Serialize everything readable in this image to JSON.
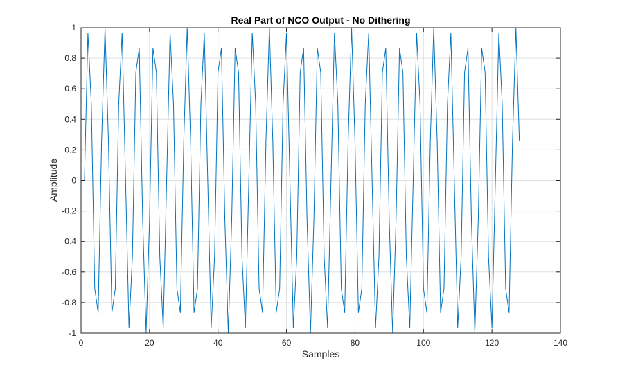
{
  "chart_data": {
    "type": "line",
    "title": "Real Part of NCO Output - No Dithering",
    "xlabel": "Samples",
    "ylabel": "Amplitude",
    "xlim": [
      0,
      140
    ],
    "ylim": [
      -1,
      1
    ],
    "xticks": [
      0,
      20,
      40,
      60,
      80,
      100,
      120,
      140
    ],
    "yticks": [
      -1,
      -0.8,
      -0.6,
      -0.4,
      -0.2,
      0,
      0.2,
      0.4,
      0.6,
      0.8,
      1
    ],
    "xtick_labels": [
      "0",
      "20",
      "40",
      "60",
      "80",
      "100",
      "120",
      "140"
    ],
    "ytick_labels": [
      "-1",
      "-0.8",
      "-0.6",
      "-0.4",
      "-0.2",
      "0",
      "0.2",
      "0.4",
      "0.6",
      "0.8",
      "1"
    ],
    "grid": true,
    "line_color": "#0072BD",
    "series": [
      {
        "x": [
          1,
          2,
          3,
          4,
          5,
          6,
          7,
          8,
          9,
          10,
          11,
          12,
          13,
          14,
          15,
          16,
          17,
          18,
          19,
          20,
          21,
          22,
          23,
          24,
          25,
          26,
          27,
          28,
          29,
          30,
          31,
          32,
          33,
          34,
          35,
          36,
          37,
          38,
          39,
          40,
          41,
          42,
          43,
          44,
          45,
          46,
          47,
          48,
          49,
          50,
          51,
          52,
          53,
          54,
          55,
          56,
          57,
          58,
          59,
          60,
          61,
          62,
          63,
          64,
          65,
          66,
          67,
          68,
          69,
          70,
          71,
          72,
          73,
          74,
          75,
          76,
          77,
          78,
          79,
          80,
          81,
          82,
          83,
          84,
          85,
          86,
          87,
          88,
          89,
          90,
          91,
          92,
          93,
          94,
          95,
          96,
          97,
          98,
          99,
          100,
          101,
          102,
          103,
          104,
          105,
          106,
          107,
          108,
          109,
          110,
          111,
          112,
          113,
          114,
          115,
          116,
          117,
          118,
          119,
          120,
          121,
          122,
          123,
          124,
          125,
          126,
          127,
          128
        ],
        "y": [
          0,
          0.9659,
          0.5,
          -0.7071,
          -0.866,
          0.2588,
          1,
          0.2588,
          -0.866,
          -0.7071,
          0.5,
          0.9659,
          0,
          -0.9659,
          -0.5,
          0.7071,
          0.866,
          -0.2588,
          -1,
          -0.2588,
          0.866,
          0.7071,
          -0.5,
          -0.9659,
          0,
          0.9659,
          0.5,
          -0.7071,
          -0.866,
          0.2588,
          1,
          0.2588,
          -0.866,
          -0.7071,
          0.5,
          0.9659,
          0,
          -0.9659,
          -0.5,
          0.7071,
          0.866,
          -0.2588,
          -1,
          -0.2588,
          0.866,
          0.7071,
          -0.5,
          -0.9659,
          0,
          0.9659,
          0.5,
          -0.7071,
          -0.866,
          0.2588,
          1,
          0.2588,
          -0.866,
          -0.7071,
          0.5,
          0.9659,
          0,
          -0.9659,
          -0.5,
          0.7071,
          0.866,
          -0.2588,
          -1,
          -0.2588,
          0.866,
          0.7071,
          -0.5,
          -0.9659,
          0,
          0.9659,
          0.5,
          -0.7071,
          -0.866,
          0.2588,
          1,
          0.2588,
          -0.866,
          -0.7071,
          0.5,
          0.9659,
          0,
          -0.9659,
          -0.5,
          0.7071,
          0.866,
          -0.2588,
          -1,
          -0.2588,
          0.866,
          0.7071,
          -0.5,
          -0.9659,
          0,
          0.9659,
          0.5,
          -0.7071,
          -0.866,
          0.2588,
          1,
          0.2588,
          -0.866,
          -0.7071,
          0.5,
          0.9659,
          0,
          -0.9659,
          -0.5,
          0.7071,
          0.866,
          -0.2588,
          -1,
          -0.2588,
          0.866,
          0.7071,
          -0.5,
          -0.9659,
          0,
          0.9659,
          0.5,
          -0.7071,
          -0.866,
          0.2588,
          1,
          0.2588
        ]
      }
    ]
  }
}
